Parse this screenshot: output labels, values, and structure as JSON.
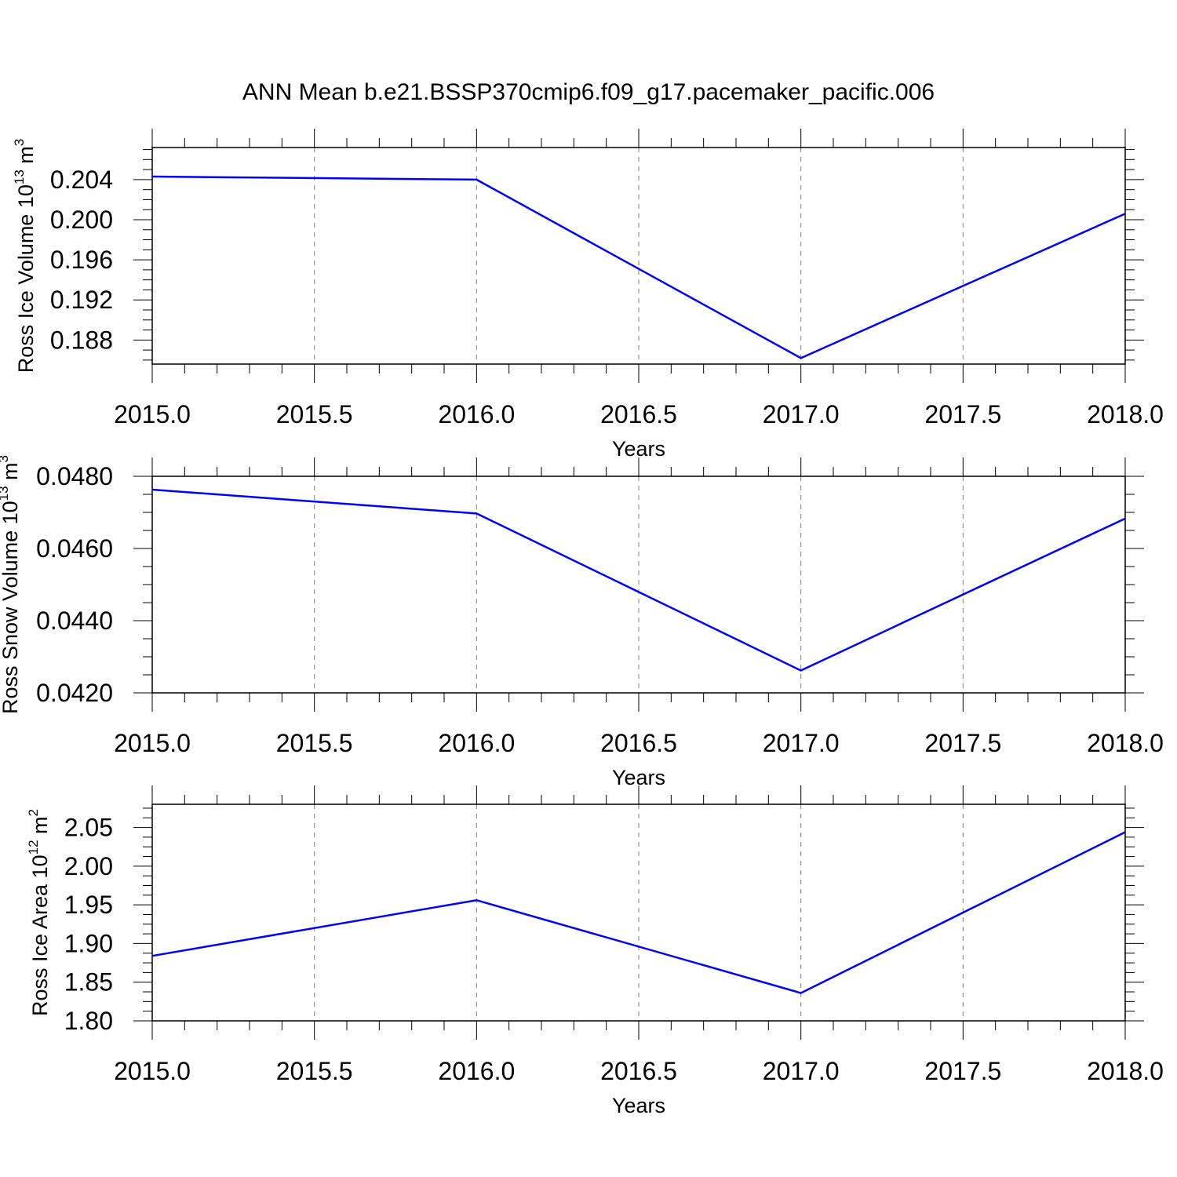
{
  "figure": {
    "title": "ANN Mean b.e21.BSSP370cmip6.f09_g17.pacemaker_pacific.006"
  },
  "colors": {
    "series": "#0000ff",
    "axis": "#000000",
    "grid": "#808080",
    "background": "#ffffff"
  },
  "chart_data": [
    {
      "type": "line",
      "xlabel": "Years",
      "ylabel": {
        "text": "Ross Ice Volume 10",
        "exp": "13",
        "unit": " m",
        "unit_exp": "3"
      },
      "xlim": [
        2015.0,
        2018.0
      ],
      "ylim": [
        0.1856,
        0.2072
      ],
      "x_ticks": [
        "2015.0",
        "2015.5",
        "2016.0",
        "2016.5",
        "2017.0",
        "2017.5",
        "2018.0"
      ],
      "y_ticks": [
        "0.188",
        "0.192",
        "0.196",
        "0.200",
        "0.204"
      ],
      "grid": "vertical-dashed",
      "series": [
        {
          "x": [
            2015,
            2016,
            2017,
            2018
          ],
          "values": [
            0.2043,
            0.204,
            0.1862,
            0.2006
          ]
        }
      ]
    },
    {
      "type": "line",
      "xlabel": "Years",
      "ylabel": {
        "text": "Ross Snow Volume 10",
        "exp": "13",
        "unit": " m",
        "unit_exp": "3"
      },
      "xlim": [
        2015.0,
        2018.0
      ],
      "ylim": [
        0.042,
        0.048
      ],
      "x_ticks": [
        "2015.0",
        "2015.5",
        "2016.0",
        "2016.5",
        "2017.0",
        "2017.5",
        "2018.0"
      ],
      "y_ticks": [
        "0.0420",
        "0.0440",
        "0.0460",
        "0.0480"
      ],
      "grid": "vertical-dashed",
      "series": [
        {
          "x": [
            2015,
            2016,
            2017,
            2018
          ],
          "values": [
            0.04763,
            0.04697,
            0.04262,
            0.04683
          ]
        }
      ]
    },
    {
      "type": "line",
      "xlabel": "Years",
      "ylabel": {
        "text": "Ross Ice Area 10",
        "exp": "12",
        "unit": " m",
        "unit_exp": "2"
      },
      "xlim": [
        2015.0,
        2018.0
      ],
      "ylim": [
        1.8,
        2.08
      ],
      "x_ticks": [
        "2015.0",
        "2015.5",
        "2016.0",
        "2016.5",
        "2017.0",
        "2017.5",
        "2018.0"
      ],
      "y_ticks": [
        "1.80",
        "1.85",
        "1.90",
        "1.95",
        "2.00",
        "2.05"
      ],
      "grid": "vertical-dashed",
      "series": [
        {
          "x": [
            2015,
            2016,
            2017,
            2018
          ],
          "values": [
            1.884,
            1.956,
            1.836,
            2.044
          ]
        }
      ]
    }
  ]
}
